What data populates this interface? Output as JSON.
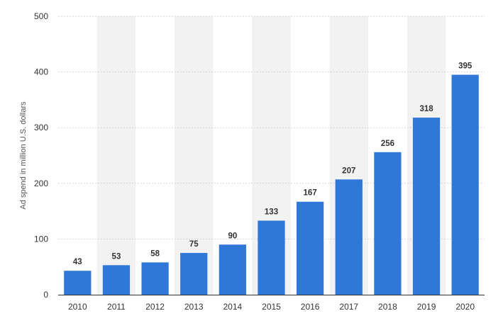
{
  "chart_data": {
    "type": "bar",
    "categories": [
      "2010",
      "2011",
      "2012",
      "2013",
      "2014",
      "2015",
      "2016",
      "2017",
      "2018",
      "2019",
      "2020"
    ],
    "values": [
      43,
      53,
      58,
      75,
      90,
      133,
      167,
      207,
      256,
      318,
      395
    ],
    "data_labels": [
      "43",
      "53",
      "58",
      "75",
      "90",
      "133",
      "167",
      "207",
      "256",
      "318",
      "395"
    ],
    "title": "",
    "xlabel": "",
    "ylabel": "Ad spend in million U.S. dollars",
    "ylim": [
      0,
      500
    ],
    "yticks": [
      0,
      100,
      200,
      300,
      400,
      500
    ],
    "grid": true,
    "legend": "none",
    "colors": {
      "bar": "#2f78d8",
      "band": "#f2f2f2",
      "gridline": "#c8c8c8",
      "axis": "#333333"
    }
  }
}
